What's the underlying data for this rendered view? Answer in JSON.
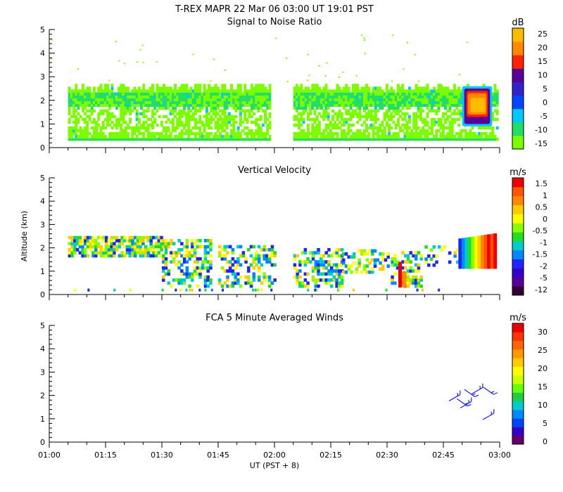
{
  "header": {
    "title": "T-REX   MAPR 22 Mar 06   03:00 UT   19:01   PST"
  },
  "colors": {
    "snr": [
      "#7cfc00",
      "#22dd66",
      "#00c8ff",
      "#0044ff",
      "#3322cc",
      "#5a0099",
      "#ff2200",
      "#ff8800",
      "#ffbb00"
    ],
    "vel": [
      "#330033",
      "#5a0099",
      "#3300cc",
      "#2222ff",
      "#0088ff",
      "#00cccc",
      "#22dd22",
      "#88ff00",
      "#ffff00",
      "#ffcc00",
      "#ff8800",
      "#ff5500",
      "#ee0000"
    ],
    "wind": [
      "#660066",
      "#3300cc",
      "#0044ff",
      "#0088ff",
      "#00cccc",
      "#22cc44",
      "#66ff00",
      "#ccff00",
      "#ffff00",
      "#ffcc00",
      "#ff9900",
      "#ff6600",
      "#ff3300",
      "#ee0000"
    ]
  },
  "chart_data": [
    {
      "type": "heatmap",
      "title": "Signal to Noise Ratio",
      "ylabel": "",
      "xlabel": "",
      "ylim": [
        0,
        5
      ],
      "y_ticks": [
        "0",
        "1",
        "2",
        "3",
        "4",
        "5"
      ],
      "colorbar_unit": "dB",
      "colorbar_ticks": [
        "-15",
        "-10",
        "-5",
        "0",
        "5",
        "10",
        "15",
        "20",
        "25"
      ],
      "echo_summary": {
        "segments_ut": [
          [
            "01:05",
            "01:59"
          ],
          [
            "02:05",
            "02:59"
          ]
        ],
        "altitude_km": [
          0.3,
          2.7
        ],
        "strong_echo": {
          "time_ut": [
            "02:52",
            "02:58"
          ],
          "altitude_km": [
            1.0,
            2.5
          ],
          "db_max": 25
        }
      }
    },
    {
      "type": "heatmap",
      "title": "Vertical Velocity",
      "ylabel": "Altitude (km)",
      "xlabel": "",
      "ylim": [
        0,
        5
      ],
      "y_ticks": [
        "0",
        "1",
        "2",
        "3",
        "4",
        "5"
      ],
      "colorbar_unit": "m/s",
      "colorbar_ticks": [
        "-12",
        "-5",
        "-2",
        "-1.5",
        "-1",
        "-0.5",
        "0",
        "0.5",
        "1",
        "1.5"
      ],
      "echo_summary": {
        "altitude_km": [
          0.3,
          2.6
        ],
        "updraft_region": {
          "time_ut": [
            "02:53",
            "02:59"
          ],
          "velocity_ms_max": 1.5
        }
      }
    },
    {
      "type": "scatter",
      "title": "FCA 5 Minute Averaged Winds",
      "ylabel": "",
      "xlabel": "UT  (PST + 8)",
      "ylim": [
        0,
        5
      ],
      "y_ticks": [
        "0",
        "1",
        "2",
        "3",
        "4",
        "5"
      ],
      "x_ticks": [
        "01:00",
        "01:15",
        "01:30",
        "01:45",
        "02:00",
        "02:15",
        "02:30",
        "02:45",
        "03:00"
      ],
      "colorbar_unit": "m/s",
      "colorbar_ticks": [
        "0",
        "5",
        "10",
        "15",
        "20",
        "25",
        "30"
      ],
      "barbs": [
        {
          "time_ut": "02:48",
          "altitude_km": 1.9,
          "speed_ms": 3
        },
        {
          "time_ut": "02:50",
          "altitude_km": 1.7,
          "speed_ms": 3
        },
        {
          "time_ut": "02:51",
          "altitude_km": 1.6,
          "speed_ms": 3
        },
        {
          "time_ut": "02:52",
          "altitude_km": 2.1,
          "speed_ms": 3
        },
        {
          "time_ut": "02:54",
          "altitude_km": 2.2,
          "speed_ms": 3
        },
        {
          "time_ut": "02:57",
          "altitude_km": 2.2,
          "speed_ms": 4
        },
        {
          "time_ut": "02:57",
          "altitude_km": 1.1,
          "speed_ms": 4
        }
      ]
    }
  ]
}
